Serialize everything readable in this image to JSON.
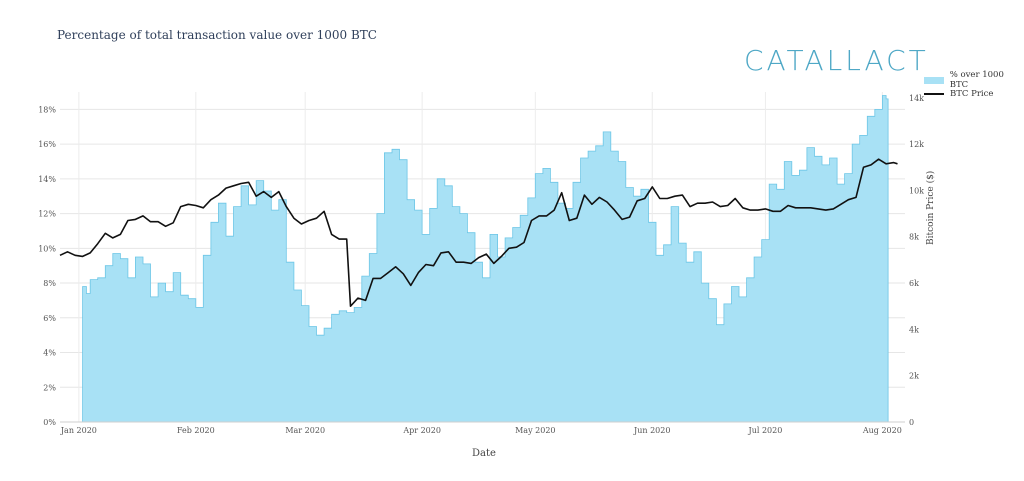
{
  "header": {
    "title": "Percentage of total transaction value over 1000 BTC",
    "brand": "CATALLACT"
  },
  "chart_data": {
    "type": "area",
    "title": "Percentage of total transaction value over 1000 BTC",
    "xlabel": "Date",
    "ylabel": "",
    "y2label": "Bitcoin Price ($)",
    "x_ticks": [
      "Jan 2020",
      "Feb 2020",
      "Mar 2020",
      "Apr 2020",
      "May 2020",
      "Jun 2020",
      "Jul 2020",
      "Aug 2020"
    ],
    "y_ticks": [
      "0%",
      "2%",
      "4%",
      "6%",
      "8%",
      "10%",
      "12%",
      "14%",
      "16%",
      "18%"
    ],
    "y2_ticks": [
      "0",
      "2k",
      "4k",
      "6k",
      "8k",
      "10k",
      "12k",
      "14k"
    ],
    "ylim": [
      0,
      19
    ],
    "y2lim": [
      0,
      14250
    ],
    "xlim": [
      "2019-12-27",
      "2020-08-07"
    ],
    "grid": true,
    "legend_position": "top-right",
    "series": [
      {
        "name": "% over 1000 BTC",
        "axis": "left",
        "kind": "area",
        "color": "#a8e1f5",
        "stroke": "#6cc6e6",
        "points": [
          [
            "2020-01-02",
            7.8
          ],
          [
            "2020-01-03",
            7.4
          ],
          [
            "2020-01-04",
            8.2
          ],
          [
            "2020-01-06",
            8.3
          ],
          [
            "2020-01-08",
            9.0
          ],
          [
            "2020-01-10",
            9.7
          ],
          [
            "2020-01-12",
            9.4
          ],
          [
            "2020-01-14",
            8.3
          ],
          [
            "2020-01-16",
            9.5
          ],
          [
            "2020-01-18",
            9.1
          ],
          [
            "2020-01-20",
            7.2
          ],
          [
            "2020-01-22",
            8.0
          ],
          [
            "2020-01-24",
            7.5
          ],
          [
            "2020-01-26",
            8.6
          ],
          [
            "2020-01-28",
            7.3
          ],
          [
            "2020-01-30",
            7.1
          ],
          [
            "2020-02-01",
            6.6
          ],
          [
            "2020-02-03",
            9.6
          ],
          [
            "2020-02-05",
            11.5
          ],
          [
            "2020-02-07",
            12.6
          ],
          [
            "2020-02-09",
            10.7
          ],
          [
            "2020-02-11",
            12.4
          ],
          [
            "2020-02-13",
            13.6
          ],
          [
            "2020-02-15",
            12.5
          ],
          [
            "2020-02-17",
            13.9
          ],
          [
            "2020-02-19",
            13.3
          ],
          [
            "2020-02-21",
            12.2
          ],
          [
            "2020-02-23",
            12.8
          ],
          [
            "2020-02-25",
            9.2
          ],
          [
            "2020-02-27",
            7.6
          ],
          [
            "2020-02-29",
            6.7
          ],
          [
            "2020-03-02",
            5.5
          ],
          [
            "2020-03-04",
            5.0
          ],
          [
            "2020-03-06",
            5.4
          ],
          [
            "2020-03-08",
            6.2
          ],
          [
            "2020-03-10",
            6.4
          ],
          [
            "2020-03-12",
            6.3
          ],
          [
            "2020-03-14",
            6.6
          ],
          [
            "2020-03-16",
            8.4
          ],
          [
            "2020-03-18",
            9.7
          ],
          [
            "2020-03-20",
            12.0
          ],
          [
            "2020-03-22",
            15.5
          ],
          [
            "2020-03-24",
            15.7
          ],
          [
            "2020-03-26",
            15.1
          ],
          [
            "2020-03-28",
            12.8
          ],
          [
            "2020-03-30",
            12.2
          ],
          [
            "2020-04-01",
            10.8
          ],
          [
            "2020-04-03",
            12.3
          ],
          [
            "2020-04-05",
            14.0
          ],
          [
            "2020-04-07",
            13.6
          ],
          [
            "2020-04-09",
            12.4
          ],
          [
            "2020-04-11",
            12.0
          ],
          [
            "2020-04-13",
            10.9
          ],
          [
            "2020-04-15",
            9.2
          ],
          [
            "2020-04-17",
            8.3
          ],
          [
            "2020-04-19",
            10.8
          ],
          [
            "2020-04-21",
            9.5
          ],
          [
            "2020-04-23",
            10.6
          ],
          [
            "2020-04-25",
            11.2
          ],
          [
            "2020-04-27",
            11.9
          ],
          [
            "2020-04-29",
            12.9
          ],
          [
            "2020-05-01",
            14.3
          ],
          [
            "2020-05-03",
            14.6
          ],
          [
            "2020-05-05",
            13.8
          ],
          [
            "2020-05-07",
            12.6
          ],
          [
            "2020-05-09",
            12.3
          ],
          [
            "2020-05-11",
            13.8
          ],
          [
            "2020-05-13",
            15.2
          ],
          [
            "2020-05-15",
            15.6
          ],
          [
            "2020-05-17",
            15.9
          ],
          [
            "2020-05-19",
            16.7
          ],
          [
            "2020-05-21",
            15.6
          ],
          [
            "2020-05-23",
            15.0
          ],
          [
            "2020-05-25",
            13.5
          ],
          [
            "2020-05-27",
            13.0
          ],
          [
            "2020-05-29",
            13.4
          ],
          [
            "2020-05-31",
            11.5
          ],
          [
            "2020-06-02",
            9.6
          ],
          [
            "2020-06-04",
            10.2
          ],
          [
            "2020-06-06",
            12.4
          ],
          [
            "2020-06-08",
            10.3
          ],
          [
            "2020-06-10",
            9.2
          ],
          [
            "2020-06-12",
            9.8
          ],
          [
            "2020-06-14",
            8.0
          ],
          [
            "2020-06-16",
            7.1
          ],
          [
            "2020-06-18",
            5.6
          ],
          [
            "2020-06-20",
            6.8
          ],
          [
            "2020-06-22",
            7.8
          ],
          [
            "2020-06-24",
            7.2
          ],
          [
            "2020-06-26",
            8.3
          ],
          [
            "2020-06-28",
            9.5
          ],
          [
            "2020-06-30",
            10.5
          ],
          [
            "2020-07-02",
            13.7
          ],
          [
            "2020-07-04",
            13.4
          ],
          [
            "2020-07-06",
            15.0
          ],
          [
            "2020-07-08",
            14.2
          ],
          [
            "2020-07-10",
            14.5
          ],
          [
            "2020-07-12",
            15.8
          ],
          [
            "2020-07-14",
            15.3
          ],
          [
            "2020-07-16",
            14.8
          ],
          [
            "2020-07-18",
            15.2
          ],
          [
            "2020-07-20",
            13.7
          ],
          [
            "2020-07-22",
            14.3
          ],
          [
            "2020-07-24",
            16.0
          ],
          [
            "2020-07-26",
            16.5
          ],
          [
            "2020-07-28",
            17.6
          ],
          [
            "2020-07-30",
            18.0
          ],
          [
            "2020-08-01",
            18.8
          ],
          [
            "2020-08-02",
            18.6
          ]
        ]
      },
      {
        "name": "BTC Price",
        "axis": "right",
        "kind": "line",
        "color": "#111111",
        "points": [
          [
            "2019-12-27",
            7200
          ],
          [
            "2019-12-29",
            7350
          ],
          [
            "2019-12-31",
            7200
          ],
          [
            "2020-01-02",
            7150
          ],
          [
            "2020-01-04",
            7300
          ],
          [
            "2020-01-06",
            7700
          ],
          [
            "2020-01-08",
            8150
          ],
          [
            "2020-01-10",
            7950
          ],
          [
            "2020-01-12",
            8100
          ],
          [
            "2020-01-14",
            8700
          ],
          [
            "2020-01-16",
            8750
          ],
          [
            "2020-01-18",
            8900
          ],
          [
            "2020-01-20",
            8650
          ],
          [
            "2020-01-22",
            8650
          ],
          [
            "2020-01-24",
            8450
          ],
          [
            "2020-01-26",
            8600
          ],
          [
            "2020-01-28",
            9300
          ],
          [
            "2020-01-30",
            9400
          ],
          [
            "2020-02-01",
            9350
          ],
          [
            "2020-02-03",
            9250
          ],
          [
            "2020-02-05",
            9600
          ],
          [
            "2020-02-07",
            9800
          ],
          [
            "2020-02-09",
            10100
          ],
          [
            "2020-02-11",
            10200
          ],
          [
            "2020-02-13",
            10300
          ],
          [
            "2020-02-15",
            10350
          ],
          [
            "2020-02-17",
            9750
          ],
          [
            "2020-02-19",
            9950
          ],
          [
            "2020-02-21",
            9700
          ],
          [
            "2020-02-23",
            9950
          ],
          [
            "2020-02-25",
            9300
          ],
          [
            "2020-02-27",
            8800
          ],
          [
            "2020-02-29",
            8550
          ],
          [
            "2020-03-02",
            8700
          ],
          [
            "2020-03-04",
            8800
          ],
          [
            "2020-03-06",
            9100
          ],
          [
            "2020-03-08",
            8100
          ],
          [
            "2020-03-10",
            7900
          ],
          [
            "2020-03-12",
            7900
          ],
          [
            "2020-03-13",
            5000
          ],
          [
            "2020-03-15",
            5350
          ],
          [
            "2020-03-17",
            5250
          ],
          [
            "2020-03-19",
            6200
          ],
          [
            "2020-03-21",
            6200
          ],
          [
            "2020-03-23",
            6450
          ],
          [
            "2020-03-25",
            6700
          ],
          [
            "2020-03-27",
            6400
          ],
          [
            "2020-03-29",
            5900
          ],
          [
            "2020-03-31",
            6450
          ],
          [
            "2020-04-02",
            6800
          ],
          [
            "2020-04-04",
            6750
          ],
          [
            "2020-04-06",
            7300
          ],
          [
            "2020-04-08",
            7350
          ],
          [
            "2020-04-10",
            6900
          ],
          [
            "2020-04-12",
            6900
          ],
          [
            "2020-04-14",
            6850
          ],
          [
            "2020-04-16",
            7100
          ],
          [
            "2020-04-18",
            7250
          ],
          [
            "2020-04-20",
            6850
          ],
          [
            "2020-04-22",
            7150
          ],
          [
            "2020-04-24",
            7500
          ],
          [
            "2020-04-26",
            7550
          ],
          [
            "2020-04-28",
            7750
          ],
          [
            "2020-04-30",
            8700
          ],
          [
            "2020-05-02",
            8900
          ],
          [
            "2020-05-04",
            8900
          ],
          [
            "2020-05-06",
            9150
          ],
          [
            "2020-05-08",
            9900
          ],
          [
            "2020-05-10",
            8700
          ],
          [
            "2020-05-12",
            8800
          ],
          [
            "2020-05-14",
            9800
          ],
          [
            "2020-05-16",
            9400
          ],
          [
            "2020-05-18",
            9700
          ],
          [
            "2020-05-20",
            9500
          ],
          [
            "2020-05-22",
            9150
          ],
          [
            "2020-05-24",
            8750
          ],
          [
            "2020-05-26",
            8850
          ],
          [
            "2020-05-28",
            9550
          ],
          [
            "2020-05-30",
            9650
          ],
          [
            "2020-06-01",
            10150
          ],
          [
            "2020-06-03",
            9650
          ],
          [
            "2020-06-05",
            9650
          ],
          [
            "2020-06-07",
            9750
          ],
          [
            "2020-06-09",
            9800
          ],
          [
            "2020-06-11",
            9300
          ],
          [
            "2020-06-13",
            9450
          ],
          [
            "2020-06-15",
            9450
          ],
          [
            "2020-06-17",
            9500
          ],
          [
            "2020-06-19",
            9300
          ],
          [
            "2020-06-21",
            9350
          ],
          [
            "2020-06-23",
            9650
          ],
          [
            "2020-06-25",
            9250
          ],
          [
            "2020-06-27",
            9150
          ],
          [
            "2020-06-29",
            9150
          ],
          [
            "2020-07-01",
            9200
          ],
          [
            "2020-07-03",
            9100
          ],
          [
            "2020-07-05",
            9100
          ],
          [
            "2020-07-07",
            9350
          ],
          [
            "2020-07-09",
            9250
          ],
          [
            "2020-07-11",
            9250
          ],
          [
            "2020-07-13",
            9250
          ],
          [
            "2020-07-15",
            9200
          ],
          [
            "2020-07-17",
            9150
          ],
          [
            "2020-07-19",
            9200
          ],
          [
            "2020-07-21",
            9400
          ],
          [
            "2020-07-23",
            9600
          ],
          [
            "2020-07-25",
            9700
          ],
          [
            "2020-07-27",
            11000
          ],
          [
            "2020-07-29",
            11100
          ],
          [
            "2020-07-31",
            11350
          ],
          [
            "2020-08-02",
            11150
          ],
          [
            "2020-08-04",
            11200
          ],
          [
            "2020-08-05",
            11150
          ]
        ]
      }
    ]
  }
}
